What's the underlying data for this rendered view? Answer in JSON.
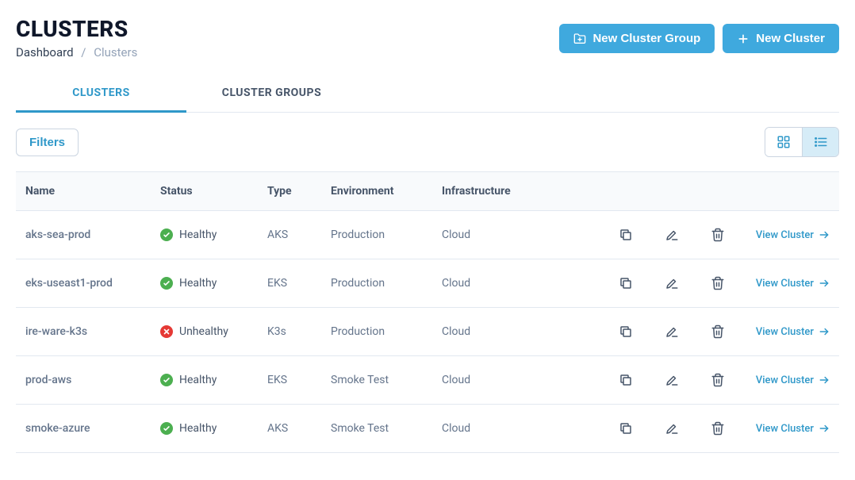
{
  "header": {
    "title": "CLUSTERS",
    "breadcrumb": {
      "parent": "Dashboard",
      "separator": "/",
      "current": "Clusters"
    },
    "buttons": {
      "new_group": "New Cluster Group",
      "new_cluster": "New Cluster"
    }
  },
  "tabs": {
    "items": [
      {
        "label": "CLUSTERS",
        "active": true
      },
      {
        "label": "CLUSTER GROUPS",
        "active": false
      }
    ]
  },
  "toolbar": {
    "filters_label": "Filters",
    "view": "list"
  },
  "colors": {
    "primary": "#3fa9de",
    "link": "#2f98c9",
    "healthy": "#4caf50",
    "unhealthy": "#e53935",
    "text": "#1e293b",
    "muted": "#64748b",
    "border": "#e2e8f0",
    "header_bg": "#f8fafc"
  },
  "table": {
    "columns": [
      "Name",
      "Status",
      "Type",
      "Environment",
      "Infrastructure"
    ],
    "view_label": "View Cluster",
    "rows": [
      {
        "name": "aks-sea-prod",
        "status": "Healthy",
        "status_kind": "healthy",
        "type": "AKS",
        "environment": "Production",
        "infrastructure": "Cloud"
      },
      {
        "name": "eks-useast1-prod",
        "status": "Healthy",
        "status_kind": "healthy",
        "type": "EKS",
        "environment": "Production",
        "infrastructure": "Cloud"
      },
      {
        "name": "ire-ware-k3s",
        "status": "Unhealthy",
        "status_kind": "unhealthy",
        "type": "K3s",
        "environment": "Production",
        "infrastructure": "Cloud"
      },
      {
        "name": "prod-aws",
        "status": "Healthy",
        "status_kind": "healthy",
        "type": "EKS",
        "environment": "Smoke Test",
        "infrastructure": "Cloud"
      },
      {
        "name": "smoke-azure",
        "status": "Healthy",
        "status_kind": "healthy",
        "type": "AKS",
        "environment": "Smoke Test",
        "infrastructure": "Cloud"
      }
    ]
  }
}
